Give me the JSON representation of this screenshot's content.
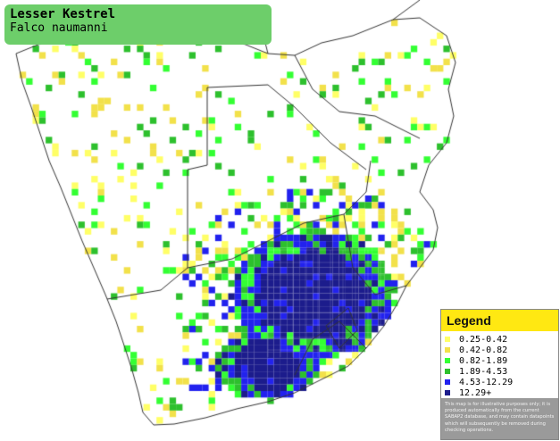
{
  "title": {
    "common_name": "Lesser Kestrel",
    "scientific_name": "Falco naumanni"
  },
  "map": {
    "region": "Southern Africa",
    "land_color": "#ffffff",
    "border_color": "#333333",
    "sea_color": "#ffffff"
  },
  "legend": {
    "heading": "Legend",
    "entries": [
      {
        "range": "0.25-0.42",
        "color": "#ffff66"
      },
      {
        "range": "0.42-0.82",
        "color": "#f2e14a"
      },
      {
        "range": "0.82-1.89",
        "color": "#33ff33"
      },
      {
        "range": "1.89-4.53",
        "color": "#2dc02d"
      },
      {
        "range": "4.53-12.29",
        "color": "#2222ee"
      },
      {
        "range": "12.29+",
        "color": "#1c1c8c"
      }
    ],
    "note": "This map is for illustrative purposes only; it is produced automatically from the current SABAP2 database, and may contain datapoints which will subsequently be removed during checking operations."
  }
}
